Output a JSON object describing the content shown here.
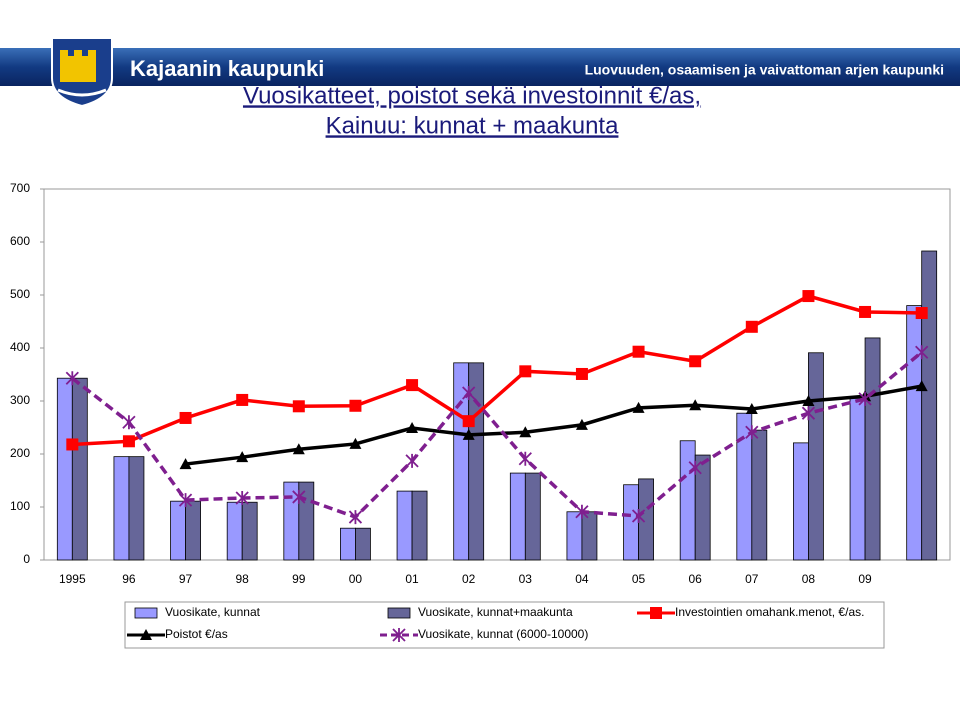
{
  "header": {
    "brand": "Kajaanin kaupunki",
    "tagline": "Luovuuden, osaamisen ja vaivattoman arjen kaupunki"
  },
  "chart_data": {
    "type": "bar",
    "title": "Vuosikatteet, poistot sekä investoinnit €/as,",
    "subtitle": "Kainuu: kunnat + maakunta",
    "categories": [
      "1995",
      "96",
      "97",
      "98",
      "99",
      "00",
      "01",
      "02",
      "03",
      "04",
      "05",
      "06",
      "07",
      "08",
      "09",
      null
    ],
    "ylim": [
      0,
      700
    ],
    "yticks": [
      0,
      100,
      200,
      300,
      400,
      500,
      600,
      700
    ],
    "series": [
      {
        "name": "Vuosikate, kunnat",
        "type": "bar",
        "color": "#9999ff",
        "values": [
          343,
          195,
          111,
          109,
          147,
          60,
          130,
          372,
          164,
          91,
          142,
          225,
          277,
          221,
          305,
          480
        ]
      },
      {
        "name": "Vuosikate, kunnat+maakunta",
        "type": "bar",
        "color": "#666699",
        "values": [
          343,
          195,
          111,
          109,
          147,
          60,
          130,
          372,
          164,
          91,
          153,
          198,
          245,
          391,
          419,
          583
        ]
      },
      {
        "name": "Investointien omahank.menot, €/as.",
        "type": "line",
        "color": "#ff0000",
        "marker": "square",
        "dashed": false,
        "values": [
          218,
          224,
          268,
          302,
          290,
          291,
          330,
          262,
          356,
          351,
          393,
          375,
          440,
          498,
          468,
          466
        ]
      },
      {
        "name": "Poistot €/as",
        "type": "line",
        "color": "#000000",
        "marker": "triangle",
        "dashed": false,
        "values": [
          null,
          null,
          181,
          194,
          209,
          219,
          249,
          236,
          241,
          255,
          287,
          292,
          285,
          300,
          309,
          328
        ]
      },
      {
        "name": "Vuosikate, kunnat (6000-10000)",
        "type": "line",
        "color": "#7f1f8f",
        "marker": "x",
        "dashed": true,
        "values": [
          343,
          260,
          113,
          117,
          119,
          81,
          187,
          315,
          191,
          91,
          83,
          174,
          241,
          277,
          304,
          392
        ]
      }
    ]
  }
}
